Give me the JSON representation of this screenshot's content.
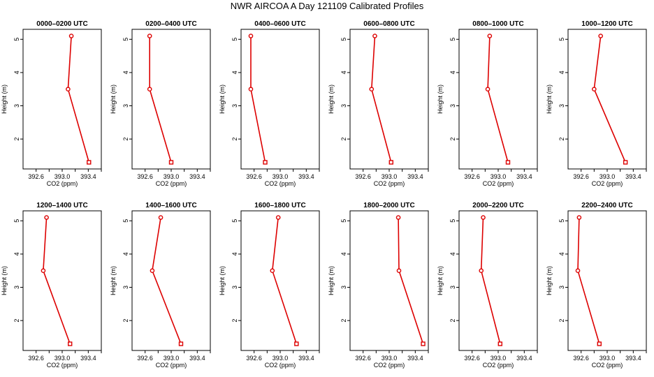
{
  "title": "NWR AIRCOA A  Day 121109  Calibrated Profiles",
  "colors": {
    "line": "#dd0000",
    "axis": "#000000"
  },
  "chart_data": {
    "type": "line",
    "xlabel": "CO2 (ppm)",
    "ylabel": "Height (m)",
    "xlim": [
      392.4,
      393.6
    ],
    "ylim": [
      1.1,
      5.3
    ],
    "x_ticks": [
      "392.6",
      "393.0",
      "393.4"
    ],
    "x_tick_values": [
      392.6,
      392.8,
      393.0,
      393.2,
      393.4,
      393.6
    ],
    "y_ticks": [
      "2",
      "3",
      "4",
      "5"
    ],
    "y_tick_values": [
      2,
      3,
      4,
      5
    ],
    "heights": [
      5.1,
      3.5,
      1.3
    ],
    "panels": [
      {
        "title": "0000–0200 UTC",
        "co2": [
          393.14,
          393.09,
          393.41
        ]
      },
      {
        "title": "0200–0400 UTC",
        "co2": [
          392.67,
          392.67,
          393.0
        ]
      },
      {
        "title": "0400–0600 UTC",
        "co2": [
          392.55,
          392.55,
          392.77
        ]
      },
      {
        "title": "0600–0800 UTC",
        "co2": [
          392.78,
          392.73,
          393.03
        ]
      },
      {
        "title": "0800–1000 UTC",
        "co2": [
          392.87,
          392.84,
          393.15
        ]
      },
      {
        "title": "1000–1200 UTC",
        "co2": [
          392.9,
          392.8,
          393.28
        ]
      },
      {
        "title": "1200–1400 UTC",
        "co2": [
          392.76,
          392.71,
          393.12
        ]
      },
      {
        "title": "1400–1600 UTC",
        "co2": [
          392.84,
          392.71,
          393.15
        ]
      },
      {
        "title": "1600–1800 UTC",
        "co2": [
          392.97,
          392.88,
          393.25
        ]
      },
      {
        "title": "1800–2000 UTC",
        "co2": [
          393.14,
          393.15,
          393.52
        ]
      },
      {
        "title": "2000–2200 UTC",
        "co2": [
          392.77,
          392.74,
          393.03
        ]
      },
      {
        "title": "2200–2400 UTC",
        "co2": [
          392.57,
          392.55,
          392.88
        ]
      }
    ]
  }
}
